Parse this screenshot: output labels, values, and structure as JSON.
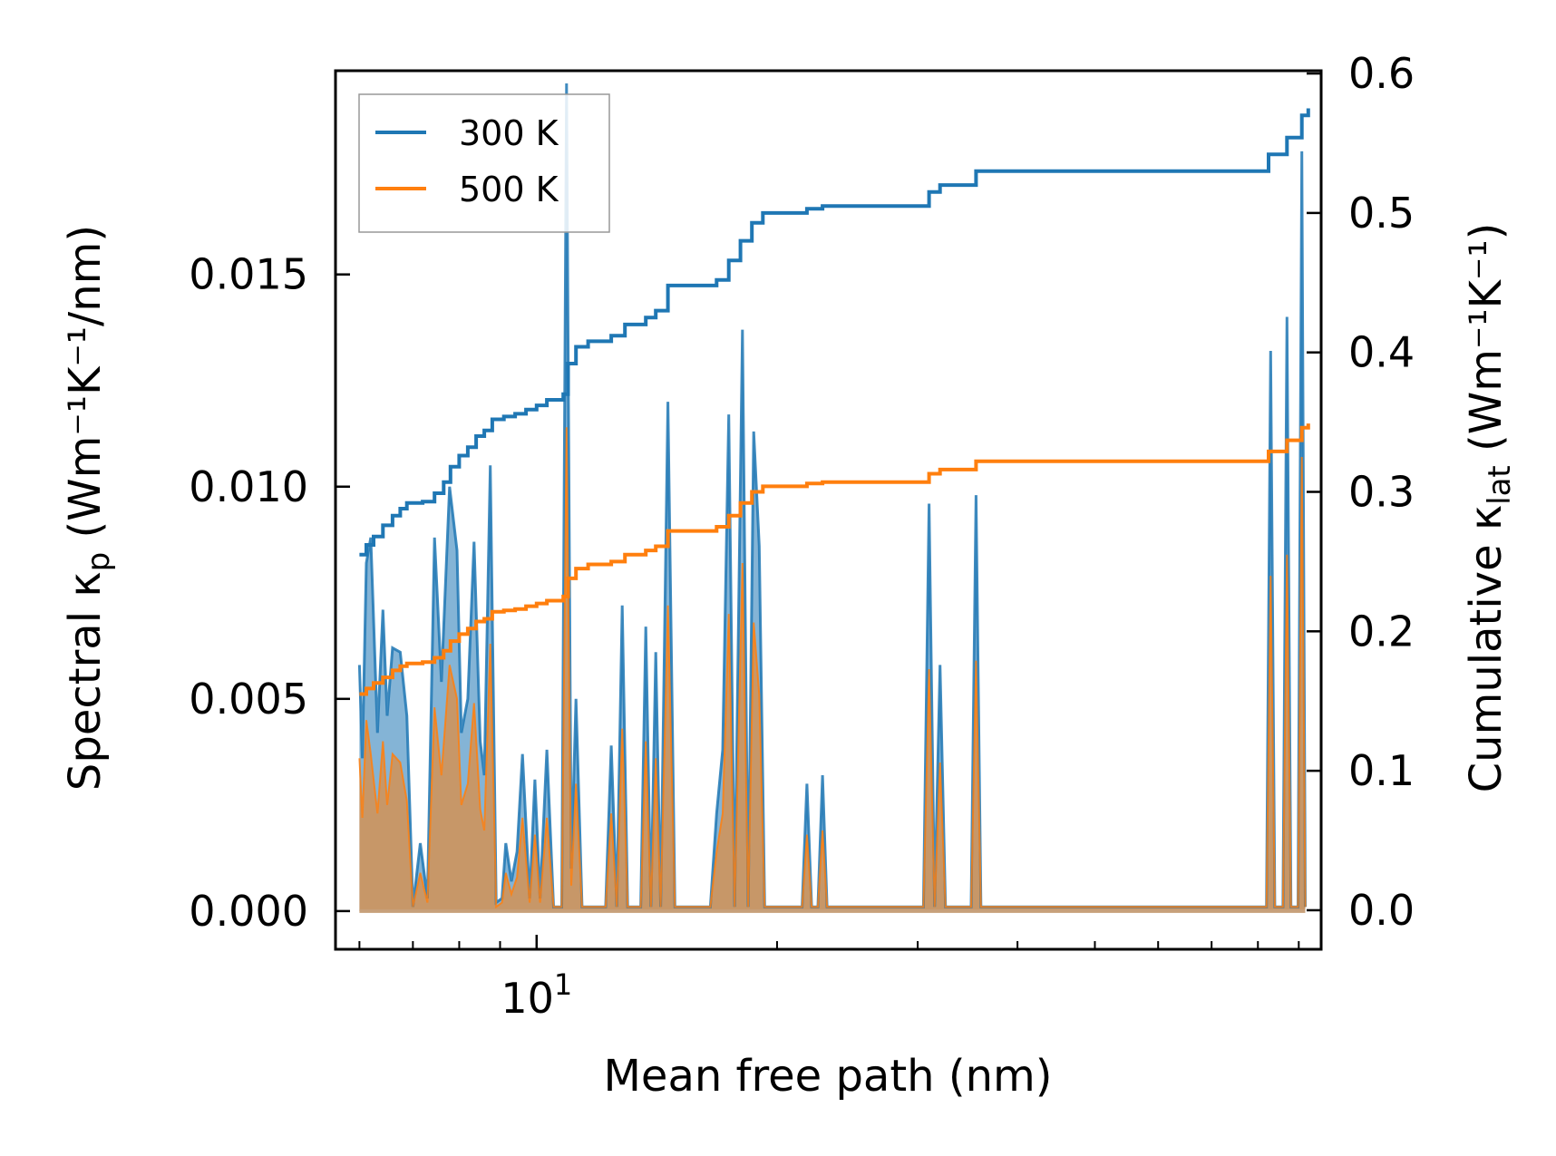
{
  "chart_data": {
    "type": "line",
    "title": "",
    "xlabel": "Mean free path (nm)",
    "ylabel_left_text": "Spectral κ",
    "ylabel_left_sub": "p",
    "ylabel_left_unit": " (Wm⁻¹K⁻¹/nm)",
    "ylabel_right_text": "Cumulative κ",
    "ylabel_right_sub": "lat",
    "ylabel_right_unit": " (Wm⁻¹K⁻¹)",
    "x_scale": "log",
    "xlim": [
      5.6,
      96
    ],
    "x_tick_label": {
      "base": "10",
      "exp": "1"
    },
    "ylim_left": [
      -0.0009,
      0.0198
    ],
    "ylim_right": [
      -0.028,
      0.602
    ],
    "y_ticks_left": [
      "0.000",
      "0.005",
      "0.010",
      "0.015"
    ],
    "y_ticks_right": [
      "0.0",
      "0.1",
      "0.2",
      "0.3",
      "0.4",
      "0.5",
      "0.6"
    ],
    "legend": {
      "position": "top-left",
      "entries": [
        "300 K",
        "500 K"
      ]
    },
    "colors": {
      "s300": "#1f77b4",
      "s500": "#ff7f0e",
      "fill300": "#1f77b4",
      "fill500": "#ff7f0e"
    },
    "spectral_300K": [
      [
        6.0,
        0.0058
      ],
      [
        6.05,
        0.0036
      ],
      [
        6.12,
        0.0082
      ],
      [
        6.2,
        0.0088
      ],
      [
        6.32,
        0.0042
      ],
      [
        6.42,
        0.0071
      ],
      [
        6.5,
        0.0046
      ],
      [
        6.6,
        0.0062
      ],
      [
        6.75,
        0.0061
      ],
      [
        6.88,
        0.0046
      ],
      [
        7.0,
        0.0001
      ],
      [
        7.15,
        0.0016
      ],
      [
        7.3,
        0.0003
      ],
      [
        7.45,
        0.0088
      ],
      [
        7.6,
        0.0054
      ],
      [
        7.78,
        0.01
      ],
      [
        7.95,
        0.0085
      ],
      [
        8.05,
        0.0042
      ],
      [
        8.2,
        0.005
      ],
      [
        8.35,
        0.0087
      ],
      [
        8.5,
        0.004
      ],
      [
        8.6,
        0.0032
      ],
      [
        8.75,
        0.0105
      ],
      [
        8.9,
        0.0002
      ],
      [
        9.05,
        0.0003
      ],
      [
        9.15,
        0.0016
      ],
      [
        9.3,
        0.0007
      ],
      [
        9.45,
        0.0014
      ],
      [
        9.6,
        0.0037
      ],
      [
        9.8,
        0.0003
      ],
      [
        9.95,
        0.0031
      ],
      [
        10.1,
        0.0003
      ],
      [
        10.3,
        0.0038
      ],
      [
        10.5,
        0.0001
      ],
      [
        10.75,
        0.0001
      ],
      [
        10.9,
        0.0195
      ],
      [
        11.05,
        0.001
      ],
      [
        11.2,
        0.005
      ],
      [
        11.4,
        0.0001
      ],
      [
        11.8,
        0.0001
      ],
      [
        12.2,
        0.0001
      ],
      [
        12.4,
        0.0039
      ],
      [
        12.6,
        0.0001
      ],
      [
        12.8,
        0.0072
      ],
      [
        13.0,
        0.0001
      ],
      [
        13.5,
        0.0001
      ],
      [
        13.7,
        0.0067
      ],
      [
        13.9,
        0.0001
      ],
      [
        14.1,
        0.0061
      ],
      [
        14.3,
        0.0001
      ],
      [
        14.6,
        0.012
      ],
      [
        14.9,
        0.0001
      ],
      [
        16.5,
        0.0001
      ],
      [
        16.8,
        0.0023
      ],
      [
        17.1,
        0.0038
      ],
      [
        17.4,
        0.0117
      ],
      [
        17.7,
        0.0001
      ],
      [
        18.1,
        0.0137
      ],
      [
        18.4,
        0.0001
      ],
      [
        18.7,
        0.0113
      ],
      [
        19.0,
        0.0086
      ],
      [
        19.3,
        0.0001
      ],
      [
        21.5,
        0.0001
      ],
      [
        21.8,
        0.003
      ],
      [
        22.1,
        0.0001
      ],
      [
        22.5,
        0.0001
      ],
      [
        22.8,
        0.0032
      ],
      [
        23.1,
        0.0001
      ],
      [
        30.5,
        0.0001
      ],
      [
        31.0,
        0.0096
      ],
      [
        31.5,
        0.0001
      ],
      [
        32.0,
        0.0058
      ],
      [
        32.5,
        0.0001
      ],
      [
        35.0,
        0.0001
      ],
      [
        35.5,
        0.0098
      ],
      [
        36.0,
        0.0001
      ],
      [
        82.0,
        0.0001
      ],
      [
        83.0,
        0.0132
      ],
      [
        84.0,
        0.0001
      ],
      [
        86.0,
        0.0001
      ],
      [
        87.0,
        0.014
      ],
      [
        88.0,
        0.0001
      ],
      [
        89.8,
        0.0001
      ],
      [
        90.8,
        0.0179
      ],
      [
        91.7,
        0.0001
      ]
    ],
    "spectral_500K": [
      [
        6.0,
        0.0036
      ],
      [
        6.05,
        0.0022
      ],
      [
        6.12,
        0.0045
      ],
      [
        6.2,
        0.0037
      ],
      [
        6.32,
        0.0023
      ],
      [
        6.42,
        0.004
      ],
      [
        6.5,
        0.0025
      ],
      [
        6.6,
        0.0037
      ],
      [
        6.75,
        0.0035
      ],
      [
        6.88,
        0.0026
      ],
      [
        7.0,
        0.0001
      ],
      [
        7.15,
        0.0009
      ],
      [
        7.3,
        0.0002
      ],
      [
        7.45,
        0.0048
      ],
      [
        7.6,
        0.0032
      ],
      [
        7.78,
        0.0058
      ],
      [
        7.95,
        0.005
      ],
      [
        8.05,
        0.0025
      ],
      [
        8.2,
        0.003
      ],
      [
        8.35,
        0.0049
      ],
      [
        8.5,
        0.0024
      ],
      [
        8.6,
        0.0019
      ],
      [
        8.75,
        0.0063
      ],
      [
        8.9,
        0.0001
      ],
      [
        9.05,
        0.0002
      ],
      [
        9.15,
        0.0009
      ],
      [
        9.3,
        0.0004
      ],
      [
        9.45,
        0.0008
      ],
      [
        9.6,
        0.0022
      ],
      [
        9.8,
        0.0002
      ],
      [
        9.95,
        0.0018
      ],
      [
        10.1,
        0.0002
      ],
      [
        10.3,
        0.0022
      ],
      [
        10.5,
        0.0001
      ],
      [
        10.75,
        0.0001
      ],
      [
        10.9,
        0.0114
      ],
      [
        11.05,
        0.0006
      ],
      [
        11.2,
        0.003
      ],
      [
        11.4,
        0.0001
      ],
      [
        11.8,
        0.0001
      ],
      [
        12.2,
        0.0001
      ],
      [
        12.4,
        0.0023
      ],
      [
        12.6,
        0.0001
      ],
      [
        12.8,
        0.0043
      ],
      [
        13.0,
        0.0001
      ],
      [
        13.5,
        0.0001
      ],
      [
        13.7,
        0.004
      ],
      [
        13.9,
        0.0001
      ],
      [
        14.1,
        0.0036
      ],
      [
        14.3,
        0.0001
      ],
      [
        14.6,
        0.0072
      ],
      [
        14.9,
        0.0001
      ],
      [
        16.5,
        0.0001
      ],
      [
        16.8,
        0.0014
      ],
      [
        17.1,
        0.0023
      ],
      [
        17.4,
        0.007
      ],
      [
        17.7,
        0.0001
      ],
      [
        18.1,
        0.0082
      ],
      [
        18.4,
        0.0001
      ],
      [
        18.7,
        0.0068
      ],
      [
        19.0,
        0.0051
      ],
      [
        19.3,
        0.0001
      ],
      [
        21.5,
        0.0001
      ],
      [
        21.8,
        0.0018
      ],
      [
        22.1,
        0.0001
      ],
      [
        22.5,
        0.0001
      ],
      [
        22.8,
        0.0019
      ],
      [
        23.1,
        0.0001
      ],
      [
        30.5,
        0.0001
      ],
      [
        31.0,
        0.0057
      ],
      [
        31.5,
        0.0001
      ],
      [
        32.0,
        0.0035
      ],
      [
        32.5,
        0.0001
      ],
      [
        35.0,
        0.0001
      ],
      [
        35.5,
        0.0059
      ],
      [
        36.0,
        0.0001
      ],
      [
        82.0,
        0.0001
      ],
      [
        83.0,
        0.0079
      ],
      [
        84.0,
        0.0001
      ],
      [
        86.0,
        0.0001
      ],
      [
        87.0,
        0.0084
      ],
      [
        88.0,
        0.0001
      ],
      [
        89.8,
        0.0001
      ],
      [
        90.8,
        0.0107
      ],
      [
        91.7,
        0.0001
      ]
    ],
    "cumulative_300K": [
      [
        6.0,
        0.255
      ],
      [
        6.12,
        0.262
      ],
      [
        6.25,
        0.268
      ],
      [
        6.42,
        0.276
      ],
      [
        6.6,
        0.283
      ],
      [
        6.75,
        0.288
      ],
      [
        6.88,
        0.292
      ],
      [
        7.2,
        0.293
      ],
      [
        7.45,
        0.299
      ],
      [
        7.65,
        0.307
      ],
      [
        7.8,
        0.318
      ],
      [
        8.0,
        0.326
      ],
      [
        8.2,
        0.332
      ],
      [
        8.4,
        0.34
      ],
      [
        8.6,
        0.344
      ],
      [
        8.8,
        0.352
      ],
      [
        9.1,
        0.354
      ],
      [
        9.4,
        0.356
      ],
      [
        9.7,
        0.359
      ],
      [
        10.0,
        0.362
      ],
      [
        10.3,
        0.366
      ],
      [
        10.8,
        0.37
      ],
      [
        10.95,
        0.392
      ],
      [
        11.2,
        0.404
      ],
      [
        11.6,
        0.408
      ],
      [
        12.4,
        0.412
      ],
      [
        12.9,
        0.42
      ],
      [
        13.7,
        0.425
      ],
      [
        14.1,
        0.43
      ],
      [
        14.6,
        0.448
      ],
      [
        16.8,
        0.452
      ],
      [
        17.4,
        0.466
      ],
      [
        18.0,
        0.48
      ],
      [
        18.6,
        0.493
      ],
      [
        19.2,
        0.5
      ],
      [
        21.8,
        0.503
      ],
      [
        22.8,
        0.505
      ],
      [
        31.0,
        0.515
      ],
      [
        32.0,
        0.52
      ],
      [
        35.5,
        0.53
      ],
      [
        82.5,
        0.542
      ],
      [
        87.0,
        0.554
      ],
      [
        90.8,
        0.57
      ],
      [
        92.5,
        0.575
      ]
    ],
    "cumulative_500K": [
      [
        6.0,
        0.155
      ],
      [
        6.12,
        0.159
      ],
      [
        6.25,
        0.163
      ],
      [
        6.42,
        0.167
      ],
      [
        6.6,
        0.172
      ],
      [
        6.75,
        0.175
      ],
      [
        6.88,
        0.177
      ],
      [
        7.2,
        0.178
      ],
      [
        7.45,
        0.181
      ],
      [
        7.65,
        0.186
      ],
      [
        7.8,
        0.193
      ],
      [
        8.0,
        0.198
      ],
      [
        8.2,
        0.202
      ],
      [
        8.4,
        0.207
      ],
      [
        8.6,
        0.209
      ],
      [
        8.8,
        0.214
      ],
      [
        9.1,
        0.215
      ],
      [
        9.4,
        0.216
      ],
      [
        9.7,
        0.218
      ],
      [
        10.0,
        0.22
      ],
      [
        10.3,
        0.222
      ],
      [
        10.8,
        0.225
      ],
      [
        10.95,
        0.238
      ],
      [
        11.2,
        0.245
      ],
      [
        11.6,
        0.248
      ],
      [
        12.4,
        0.25
      ],
      [
        12.9,
        0.255
      ],
      [
        13.7,
        0.258
      ],
      [
        14.1,
        0.261
      ],
      [
        14.6,
        0.272
      ],
      [
        16.8,
        0.275
      ],
      [
        17.4,
        0.283
      ],
      [
        18.0,
        0.292
      ],
      [
        18.6,
        0.3
      ],
      [
        19.2,
        0.304
      ],
      [
        21.8,
        0.306
      ],
      [
        22.8,
        0.307
      ],
      [
        31.0,
        0.313
      ],
      [
        32.0,
        0.316
      ],
      [
        35.5,
        0.322
      ],
      [
        82.5,
        0.329
      ],
      [
        87.0,
        0.337
      ],
      [
        90.8,
        0.346
      ],
      [
        92.5,
        0.349
      ]
    ]
  }
}
